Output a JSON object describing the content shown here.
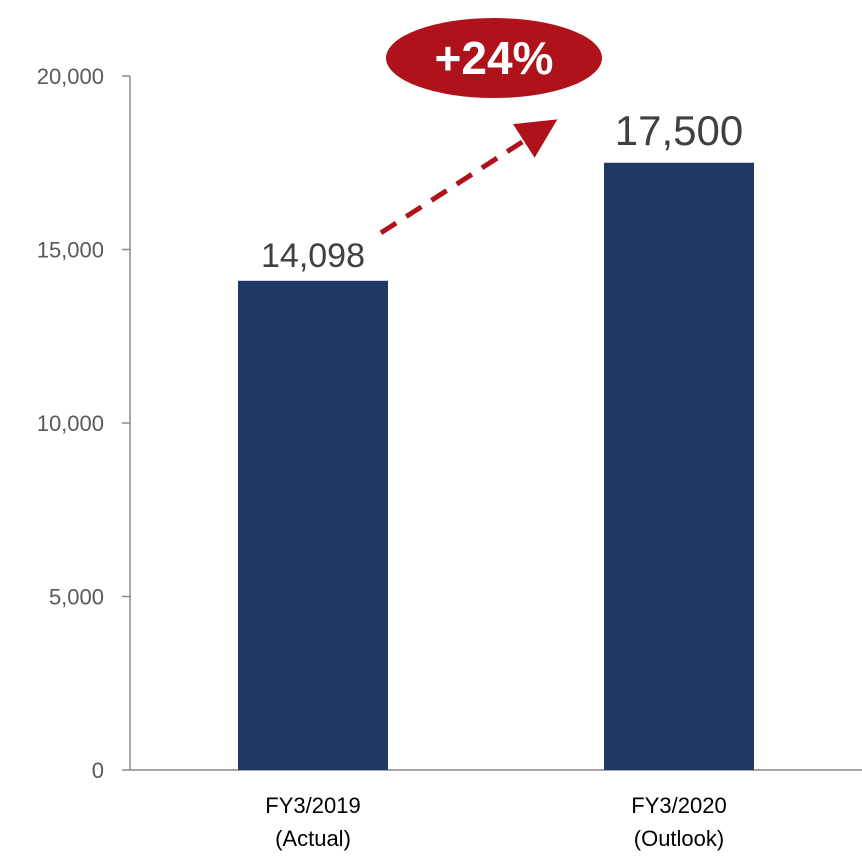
{
  "chart_data": {
    "type": "bar",
    "categories": [
      "FY3/2019 (Actual)",
      "FY3/2020 (Outlook)"
    ],
    "category_lines": [
      [
        "FY3/2019",
        "(Actual)"
      ],
      [
        "FY3/2020",
        "(Outlook)"
      ]
    ],
    "values": [
      14098,
      17500
    ],
    "value_labels": [
      "14,098",
      "17,500"
    ],
    "ylim": [
      0,
      20000
    ],
    "yticks": [
      0,
      5000,
      10000,
      15000,
      20000
    ],
    "ytick_labels": [
      "0",
      "5,000",
      "10,000",
      "15,000",
      "20,000"
    ],
    "title": "",
    "xlabel": "",
    "ylabel": "",
    "grid": false,
    "annotation": {
      "text": "+24%",
      "from_category": 0,
      "to_category": 1
    }
  },
  "colors": {
    "bar": "#203864",
    "arrow": "#B0121B",
    "badge": "#B0121B",
    "axis": "#8C8C8C"
  }
}
